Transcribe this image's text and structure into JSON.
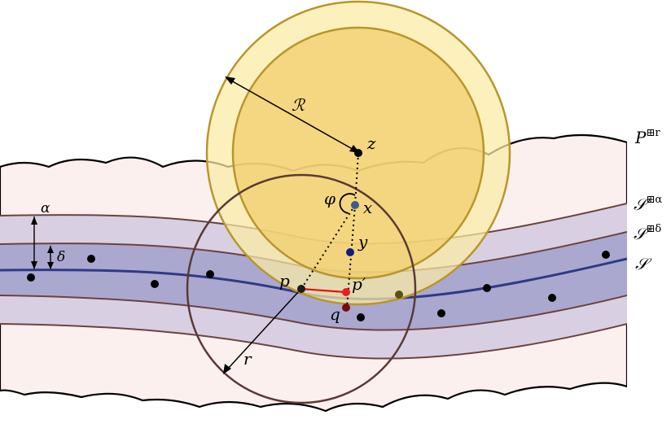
{
  "labels": {
    "R": "ℛ",
    "z": "z",
    "phi": "φ",
    "x": "x",
    "y": "y",
    "p": "p",
    "p_prime": "p′",
    "q": "q",
    "r": "r",
    "alpha": "α",
    "delta": "δ",
    "P_base": "P",
    "P_sup": "⊞r",
    "S_alpha_base": "𝒮",
    "S_alpha_sup": "⊞α",
    "S_delta_base": "𝒮",
    "S_delta_sup": "⊞δ",
    "S": "𝒮"
  },
  "colors": {
    "cloud_fill": "#fcf0ef",
    "outer_band": "#d8d0e2",
    "inner_band": "#aaa8cf",
    "curve": "#2e3a84",
    "band_edge": "#6b4340",
    "big_disk_outer": "#fbeba4",
    "big_disk_inner": "#f2cd6a",
    "disk_edge": "#b8962c",
    "small_circle": "#5a3a36",
    "segment": "#e01010",
    "point_x": "#3e5a94",
    "point_y": "#101a80",
    "point_pprime": "#e82020",
    "point_q": "#7a0a10"
  }
}
